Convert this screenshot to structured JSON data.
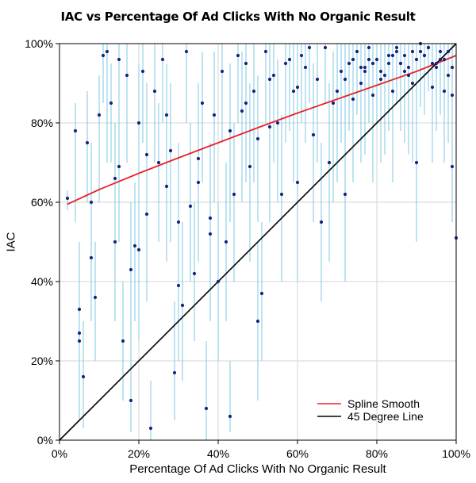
{
  "chart_data": {
    "type": "scatter",
    "title": "IAC vs Percentage Of Ad Clicks With No Organic Result",
    "xlabel": "Percentage Of Ad Clicks With No Organic Result",
    "ylabel": "IAC",
    "xlim": [
      0,
      100
    ],
    "ylim": [
      0,
      100
    ],
    "grid": true,
    "x_ticks": [
      0,
      20,
      40,
      60,
      80,
      100
    ],
    "x_tick_labels": [
      "0%",
      "20%",
      "40%",
      "60%",
      "80%",
      "100%"
    ],
    "y_ticks": [
      0,
      20,
      40,
      60,
      80,
      100
    ],
    "y_tick_labels": [
      "0%",
      "20%",
      "40%",
      "60%",
      "80%",
      "100%"
    ],
    "colors": {
      "points": "#1a237e",
      "error_bars": "#7ec8e3",
      "spline": "#e8232a",
      "diagonal": "#000000"
    },
    "legend": {
      "position": "bottom-right",
      "entries": [
        {
          "label": "Spline Smooth",
          "color": "#e8232a"
        },
        {
          "label": "45 Degree Line",
          "color": "#000000"
        }
      ]
    },
    "series": [
      {
        "name": "Advertisers",
        "kind": "points_with_intervals",
        "x": [
          2,
          4,
          5,
          5,
          5,
          6,
          7,
          8,
          8,
          9,
          10,
          11,
          12,
          13,
          14,
          14,
          15,
          15,
          16,
          17,
          18,
          18,
          19,
          20,
          20,
          21,
          22,
          22,
          23,
          24,
          25,
          26,
          27,
          27,
          28,
          29,
          30,
          30,
          31,
          32,
          33,
          34,
          35,
          35,
          36,
          37,
          38,
          38,
          39,
          40,
          41,
          42,
          43,
          43,
          44,
          45,
          46,
          47,
          47,
          48,
          49,
          50,
          50,
          51,
          52,
          53,
          53,
          54,
          55,
          56,
          57,
          58,
          59,
          60,
          60,
          61,
          62,
          63,
          64,
          65,
          66,
          67,
          68,
          69,
          70,
          71,
          72,
          73,
          74,
          75,
          76,
          77,
          78,
          79,
          80,
          81,
          82,
          83,
          84,
          85,
          86,
          87,
          88,
          89,
          90,
          91,
          92,
          93,
          94,
          95,
          96,
          97,
          98,
          99,
          99,
          100,
          72,
          76,
          78,
          81,
          84,
          86,
          88,
          90,
          92,
          94,
          95,
          96,
          97,
          98,
          77,
          83,
          87,
          91,
          93,
          74,
          79,
          85,
          89,
          99
        ],
        "y": [
          61,
          78,
          33,
          27,
          25,
          16,
          75,
          46,
          60,
          36,
          82,
          97,
          98,
          85,
          66,
          50,
          96,
          69,
          25,
          92,
          43,
          10,
          49,
          80,
          48,
          93,
          72,
          57,
          3,
          88,
          70,
          96,
          64,
          82,
          73,
          17,
          39,
          55,
          34,
          98,
          59,
          42,
          71,
          65,
          85,
          8,
          56,
          52,
          82,
          40,
          93,
          50,
          78,
          6,
          62,
          97,
          83,
          95,
          85,
          69,
          88,
          30,
          76,
          37,
          98,
          91,
          79,
          92,
          80,
          62,
          95,
          96,
          88,
          89,
          65,
          97,
          94,
          99,
          77,
          91,
          55,
          99,
          70,
          85,
          88,
          93,
          62,
          95,
          86,
          98,
          90,
          94,
          99,
          87,
          96,
          91,
          92,
          97,
          88,
          99,
          95,
          93,
          94,
          98,
          70,
          100,
          97,
          99,
          89,
          95,
          96,
          88,
          98,
          94,
          87,
          51,
          91,
          94,
          96,
          93,
          97,
          95,
          92,
          96,
          97,
          95,
          94,
          98,
          96,
          92,
          93,
          95,
          97,
          98,
          99,
          96,
          95,
          98,
          90,
          69
        ],
        "lower": [
          58,
          55,
          15,
          8,
          5,
          3,
          60,
          30,
          40,
          20,
          60,
          85,
          70,
          70,
          45,
          30,
          80,
          50,
          10,
          70,
          20,
          2,
          30,
          60,
          25,
          75,
          50,
          35,
          0,
          70,
          50,
          80,
          45,
          60,
          50,
          5,
          20,
          35,
          15,
          80,
          40,
          25,
          50,
          45,
          65,
          0,
          35,
          30,
          60,
          20,
          75,
          30,
          55,
          2,
          40,
          80,
          60,
          75,
          65,
          45,
          65,
          10,
          55,
          20,
          80,
          70,
          55,
          70,
          60,
          40,
          75,
          78,
          65,
          68,
          40,
          80,
          75,
          85,
          55,
          70,
          35,
          85,
          45,
          60,
          65,
          75,
          40,
          78,
          65,
          82,
          70,
          78,
          85,
          65,
          80,
          70,
          72,
          82,
          65,
          85,
          78,
          75,
          78,
          85,
          50,
          90,
          82,
          88,
          70,
          80,
          82,
          70,
          85,
          75,
          65,
          40,
          70,
          75,
          80,
          75,
          82,
          78,
          72,
          80,
          82,
          80,
          78,
          85,
          80,
          75,
          72,
          78,
          80,
          84,
          88,
          80,
          75,
          85,
          70,
          55
        ],
        "upper": [
          63,
          85,
          50,
          45,
          40,
          30,
          88,
          60,
          75,
          50,
          92,
          100,
          100,
          95,
          80,
          70,
          100,
          85,
          40,
          100,
          60,
          25,
          65,
          95,
          70,
          100,
          90,
          75,
          15,
          100,
          85,
          100,
          80,
          95,
          90,
          35,
          60,
          75,
          55,
          100,
          80,
          60,
          90,
          85,
          98,
          25,
          75,
          70,
          98,
          60,
          100,
          70,
          95,
          20,
          80,
          100,
          98,
          100,
          98,
          90,
          100,
          50,
          92,
          55,
          100,
          100,
          96,
          100,
          96,
          82,
          100,
          100,
          100,
          100,
          85,
          100,
          100,
          100,
          95,
          100,
          75,
          100,
          90,
          98,
          100,
          100,
          82,
          100,
          98,
          100,
          100,
          100,
          100,
          98,
          100,
          100,
          100,
          100,
          98,
          100,
          100,
          100,
          100,
          100,
          85,
          100,
          100,
          100,
          98,
          100,
          100,
          98,
          100,
          100,
          98,
          65,
          100,
          100,
          100,
          100,
          100,
          100,
          100,
          100,
          100,
          100,
          100,
          100,
          100,
          100,
          100,
          100,
          100,
          100,
          100,
          100,
          100,
          100,
          100,
          80
        ]
      },
      {
        "name": "Spline Smooth",
        "kind": "line",
        "x": [
          2,
          10,
          20,
          30,
          40,
          50,
          60,
          70,
          80,
          90,
          100
        ],
        "y": [
          59.5,
          63.2,
          67.3,
          71.2,
          75.0,
          78.8,
          82.5,
          86.0,
          89.5,
          93.0,
          97.0
        ]
      },
      {
        "name": "45 Degree Line",
        "kind": "line",
        "x": [
          0,
          100
        ],
        "y": [
          0,
          100
        ]
      }
    ]
  }
}
